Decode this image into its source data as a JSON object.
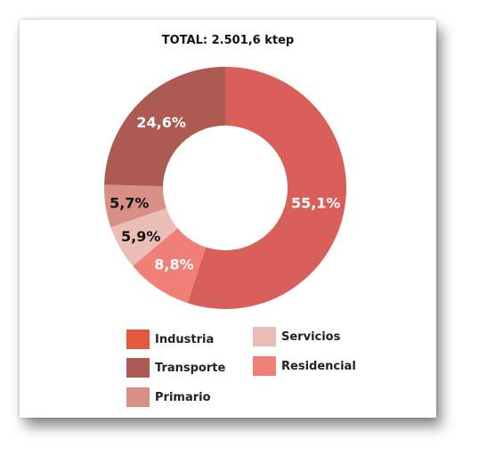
{
  "chart_data": {
    "type": "pie",
    "title": "TOTAL: 2.501,6 ktep",
    "slices": [
      {
        "name": "Industria",
        "value": 0.0,
        "label": "",
        "color": "#e0593f",
        "label_color": "#ffffff"
      },
      {
        "name": "Transporte",
        "value": 24.6,
        "label": "24,6%",
        "color": "#ad5a52",
        "label_color": "#ffffff"
      },
      {
        "name": "Primario",
        "value": 5.7,
        "label": "5,7%",
        "color": "#d98f86",
        "label_color": "#111111"
      },
      {
        "name": "Servicios",
        "value": 5.9,
        "label": "5,9%",
        "color": "#ebbdb7",
        "label_color": "#111111"
      },
      {
        "name": "Residencial",
        "value": 8.8,
        "label": "8,8%",
        "color": "#f07f78",
        "label_color": "#ffffff"
      },
      {
        "name": "",
        "value": 55.1,
        "label": "55,1%",
        "color": "#d95f5a",
        "label_color": "#ffffff"
      }
    ],
    "legend": [
      {
        "name": "Industria",
        "color": "#e0593f"
      },
      {
        "name": "Transporte",
        "color": "#ad5a52"
      },
      {
        "name": "Primario",
        "color": "#d98f86"
      },
      {
        "name": "Servicios",
        "color": "#ebbdb7"
      },
      {
        "name": "Residencial",
        "color": "#f07f78"
      }
    ],
    "legend_placement": "bottom",
    "donut": true
  }
}
